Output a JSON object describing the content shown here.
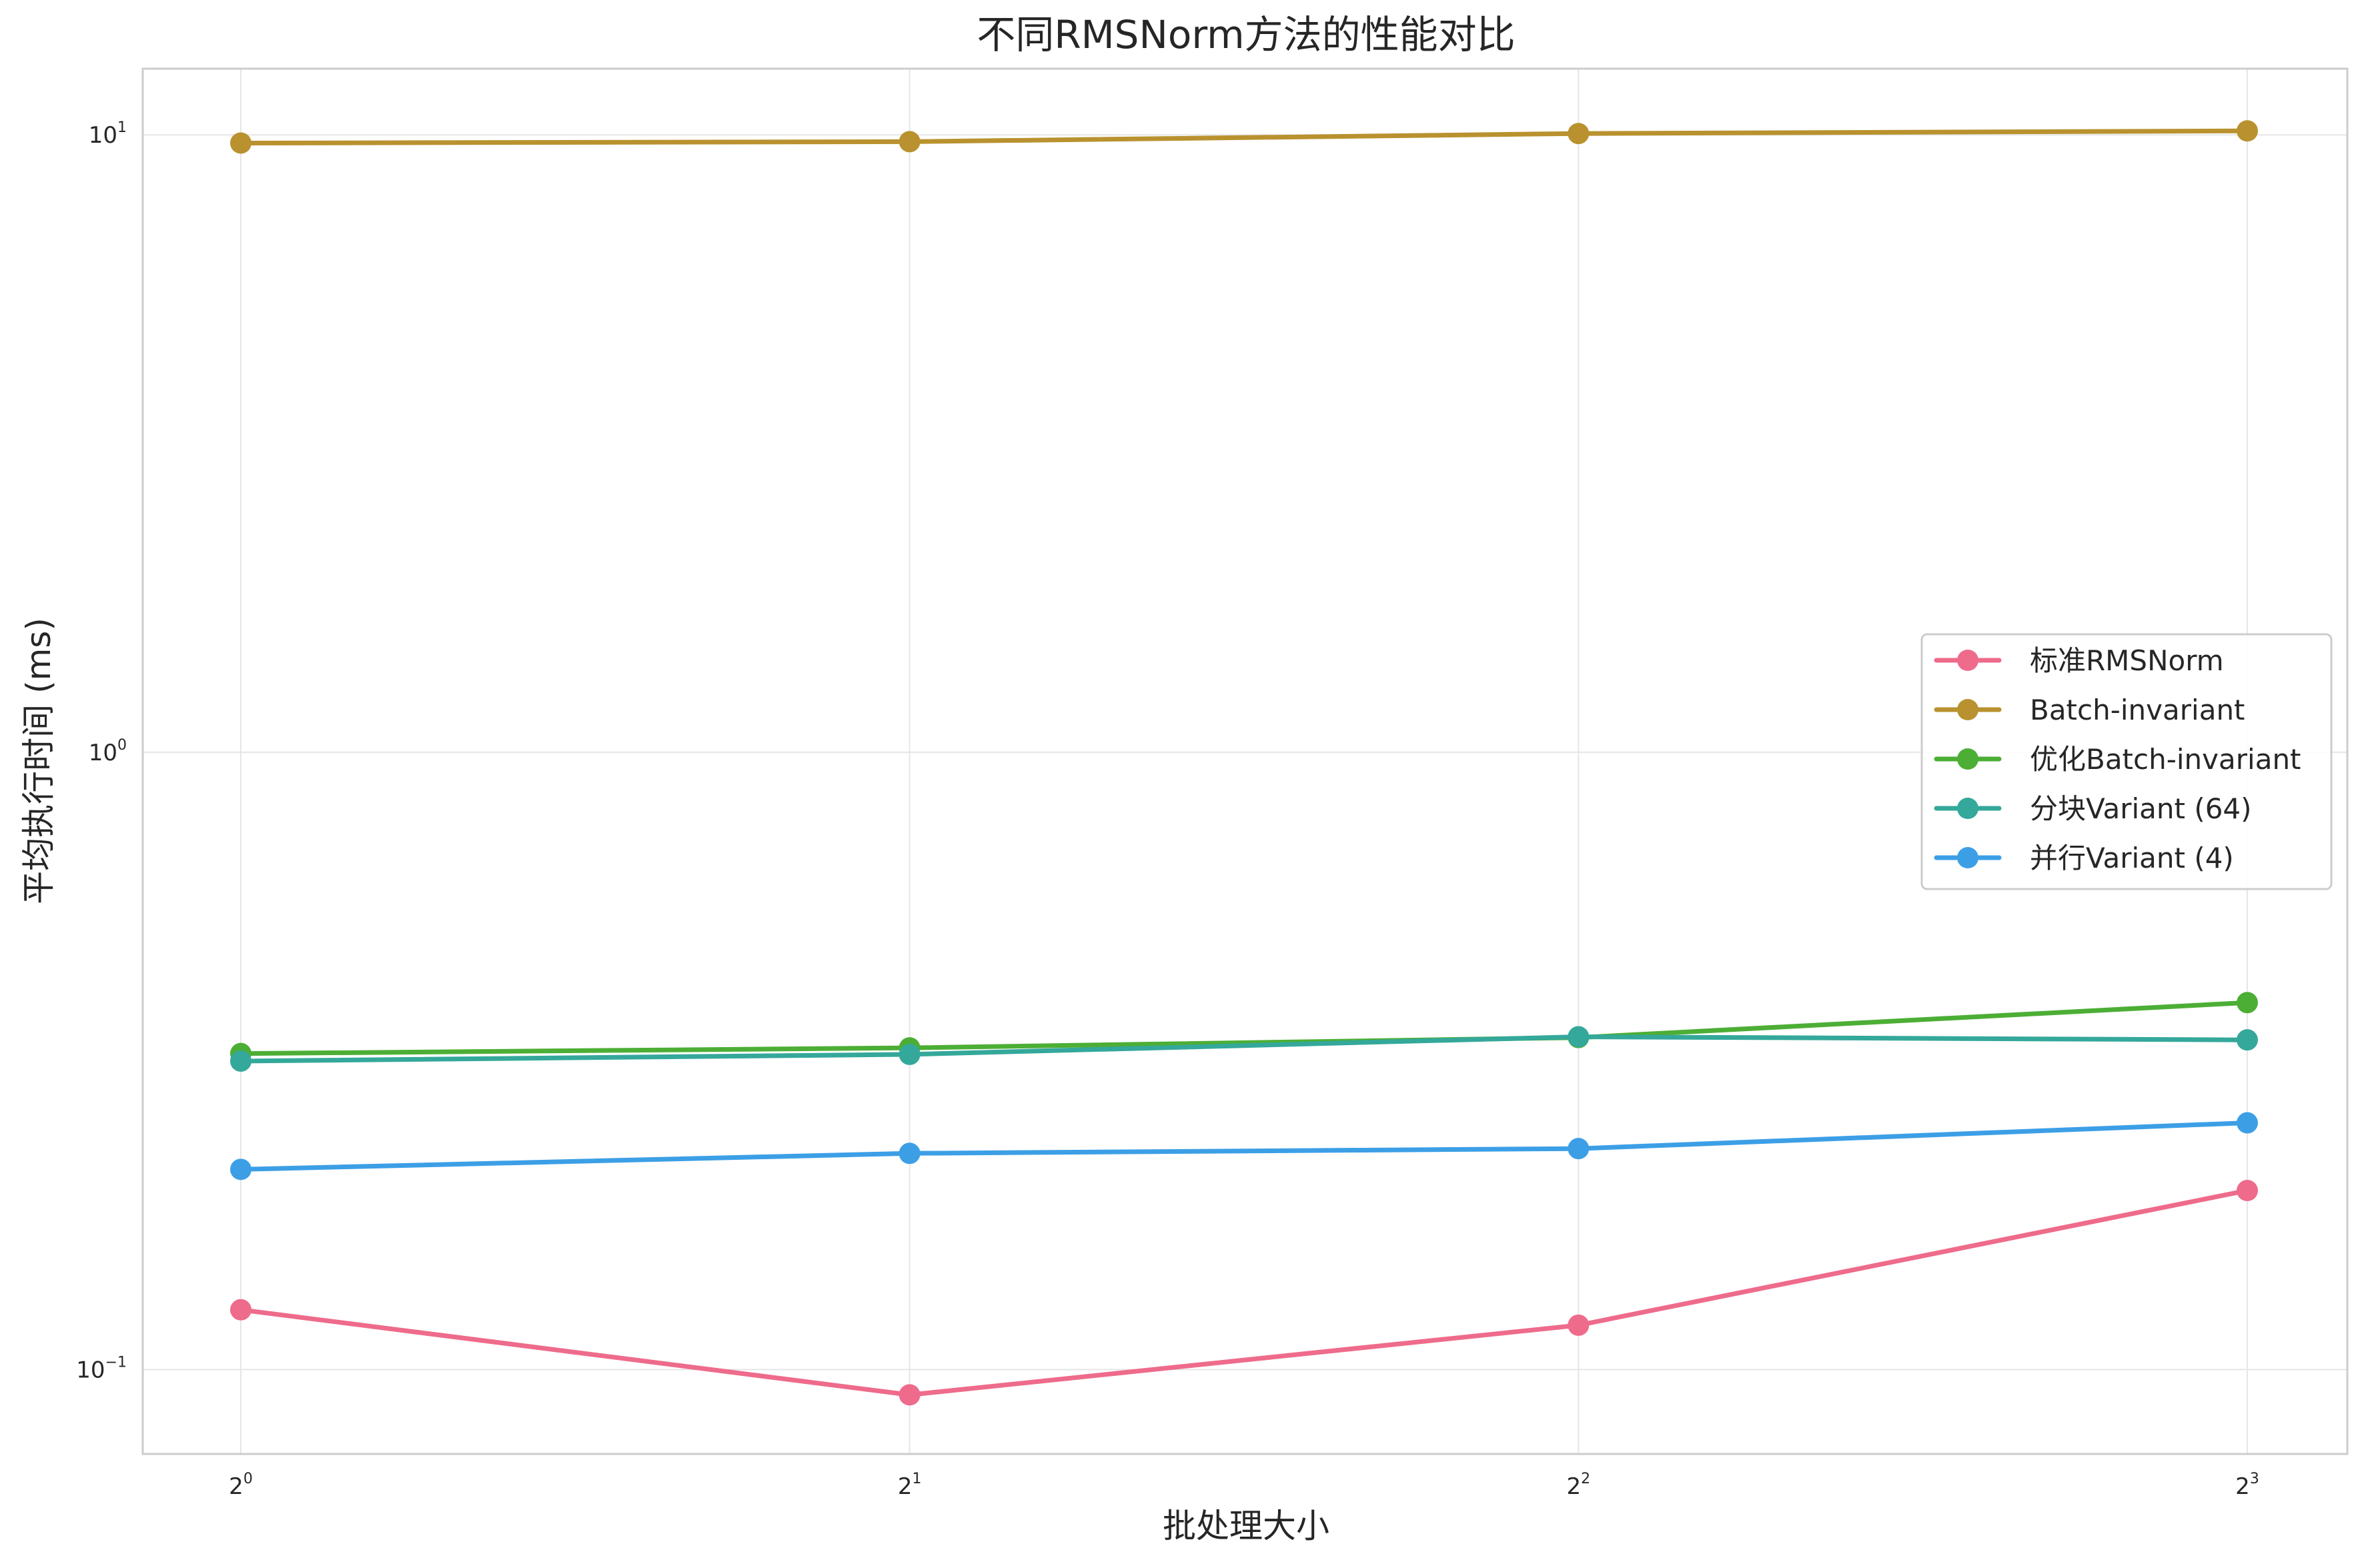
{
  "chart_data": {
    "type": "line",
    "title": "不同RMSNorm方法的性能对比",
    "xlabel": "批处理大小",
    "ylabel": "平均执行时间 (ms)",
    "xscale": "log2",
    "yscale": "log10",
    "x": [
      1,
      2,
      4,
      8
    ],
    "xticks": [
      {
        "base": "2",
        "exp": "0"
      },
      {
        "base": "2",
        "exp": "1"
      },
      {
        "base": "2",
        "exp": "2"
      },
      {
        "base": "2",
        "exp": "3"
      }
    ],
    "yticks": [
      {
        "base": "10",
        "exp": "−1",
        "value": 0.1
      },
      {
        "base": "10",
        "exp": "0",
        "value": 1
      },
      {
        "base": "10",
        "exp": "1",
        "value": 10
      }
    ],
    "xlim": [
      1,
      8
    ],
    "ylim": [
      0.073,
      12.8
    ],
    "grid": true,
    "legend_position": "center-right",
    "series": [
      {
        "name": "标准RMSNorm",
        "color": "#ee6b8b",
        "values": [
          0.125,
          0.091,
          0.118,
          0.195
        ]
      },
      {
        "name": "Batch-invariant",
        "color": "#b9922f",
        "values": [
          9.7,
          9.75,
          10.05,
          10.15
        ]
      },
      {
        "name": "优化Batch-invariant",
        "color": "#4cae35",
        "values": [
          0.325,
          0.332,
          0.345,
          0.393
        ]
      },
      {
        "name": "分块Variant (64)",
        "color": "#34a89a",
        "values": [
          0.316,
          0.324,
          0.346,
          0.342
        ]
      },
      {
        "name": "并行Variant (4)",
        "color": "#3c9fe6",
        "values": [
          0.211,
          0.224,
          0.228,
          0.251
        ]
      }
    ]
  }
}
